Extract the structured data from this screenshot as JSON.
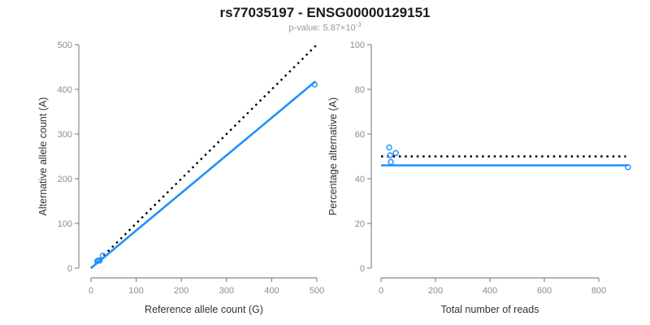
{
  "header": {
    "title": "rs77035197 - ENSG00000129151",
    "subtitle_prefix": "p-value: 5.87×10",
    "subtitle_exponent": "-3"
  },
  "colors": {
    "background": "#ffffff",
    "title": "#1a1a1a",
    "subtitle": "#9a9a9a",
    "axis": "#888888",
    "tick_label": "#8c8c8c",
    "axis_title": "#333333",
    "point": "#1E90FF",
    "fit_line": "#1E90FF",
    "reference_line": "#000000"
  },
  "chart_data": [
    {
      "type": "scatter",
      "xlabel": "Reference allele count (G)",
      "ylabel": "Alternative allele count (A)",
      "xlim": [
        0,
        500
      ],
      "ylim": [
        0,
        500
      ],
      "xticks": [
        0,
        100,
        200,
        300,
        400,
        500
      ],
      "yticks": [
        0,
        100,
        200,
        300,
        400,
        500
      ],
      "grid": false,
      "point_style": "open-circle",
      "points": [
        [
          14,
          16
        ],
        [
          16,
          17
        ],
        [
          19,
          17
        ],
        [
          26,
          28
        ],
        [
          495,
          411
        ]
      ],
      "lines": [
        {
          "name": "identity-dotted-line",
          "style": "dotted",
          "color": "#000000",
          "width": 2.4,
          "x": [
            0,
            500
          ],
          "y": [
            0,
            500
          ]
        },
        {
          "name": "fit-line",
          "style": "solid",
          "color": "#1E90FF",
          "width": 2.6,
          "x": [
            0,
            497
          ],
          "y": [
            0,
            418
          ]
        }
      ]
    },
    {
      "type": "scatter",
      "xlabel": "Total number of reads",
      "ylabel": "Percentage alternative (A)",
      "xlim": [
        0,
        910
      ],
      "ylim": [
        0,
        100
      ],
      "xticks": [
        0,
        200,
        400,
        600,
        800
      ],
      "yticks": [
        0,
        20,
        40,
        60,
        80,
        100
      ],
      "grid": false,
      "point_style": "open-circle",
      "points": [
        [
          30,
          54
        ],
        [
          33,
          50.5
        ],
        [
          36,
          47.5
        ],
        [
          54,
          51.5
        ],
        [
          907,
          45.2
        ]
      ],
      "lines": [
        {
          "name": "fifty-percent-dotted-line",
          "style": "dotted",
          "color": "#000000",
          "width": 2.4,
          "x": [
            0,
            900
          ],
          "y": [
            50,
            50
          ]
        },
        {
          "name": "fit-line",
          "style": "solid",
          "color": "#1E90FF",
          "width": 2.6,
          "x": [
            0,
            907
          ],
          "y": [
            46,
            46
          ]
        }
      ]
    }
  ]
}
